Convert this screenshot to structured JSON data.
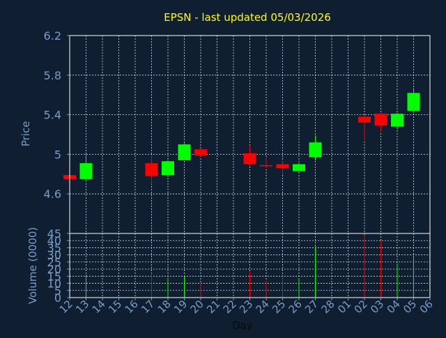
{
  "chart_data": {
    "type": "candlestick",
    "title": "EPSN - last updated 05/03/2026",
    "colors": {
      "background": "#0f1f31",
      "axis_text": "#7a9cc8",
      "title": "#ffff00",
      "grid": "#ffffff",
      "up": "#00ff00",
      "down": "#ff0000"
    },
    "xlabel": "Day",
    "x_ticks": [
      "12",
      "13",
      "14",
      "15",
      "16",
      "17",
      "18",
      "19",
      "20",
      "21",
      "22",
      "23",
      "24",
      "25",
      "26",
      "27",
      "28",
      "01",
      "02",
      "03",
      "04",
      "05",
      "06"
    ],
    "price_panel": {
      "ylabel": "Price",
      "ylim": [
        4.2,
        6.2
      ],
      "y_ticks": [
        "4.6",
        "5",
        "5.4",
        "5.8",
        "6.2"
      ],
      "y_tick_values": [
        4.6,
        5.0,
        5.4,
        5.8,
        6.2
      ]
    },
    "volume_panel": {
      "ylabel": "Volume (0000)",
      "ylim": [
        0,
        45
      ],
      "y_ticks": [
        "0",
        "5",
        "10",
        "15",
        "20",
        "25",
        "30",
        "35",
        "40",
        "45"
      ],
      "y_tick_values": [
        0,
        5,
        10,
        15,
        20,
        25,
        30,
        35,
        40,
        45
      ]
    },
    "candles": [
      {
        "day": "12",
        "open": 4.79,
        "high": 4.79,
        "low": 4.74,
        "close": 4.75,
        "volume": 0
      },
      {
        "day": "13",
        "open": 4.75,
        "high": 5.0,
        "low": 4.72,
        "close": 4.91,
        "volume": 16
      },
      {
        "day": "17",
        "open": 4.91,
        "high": 4.99,
        "low": 4.7,
        "close": 4.78,
        "volume": 17
      },
      {
        "day": "18",
        "open": 4.79,
        "high": 4.94,
        "low": 4.77,
        "close": 4.93,
        "volume": 14
      },
      {
        "day": "19",
        "open": 4.94,
        "high": 5.11,
        "low": 4.94,
        "close": 5.1,
        "volume": 15
      },
      {
        "day": "20",
        "open": 5.05,
        "high": 5.06,
        "low": 4.98,
        "close": 4.99,
        "volume": 10
      },
      {
        "day": "23",
        "open": 5.01,
        "high": 5.09,
        "low": 4.89,
        "close": 4.9,
        "volume": 18
      },
      {
        "day": "24",
        "open": 4.89,
        "high": 4.97,
        "low": 4.86,
        "close": 4.88,
        "volume": 12
      },
      {
        "day": "25",
        "open": 4.9,
        "high": 4.93,
        "low": 4.8,
        "close": 4.86,
        "volume": 15
      },
      {
        "day": "26",
        "open": 4.83,
        "high": 4.91,
        "low": 4.82,
        "close": 4.9,
        "volume": 13
      },
      {
        "day": "27",
        "open": 4.97,
        "high": 5.19,
        "low": 4.94,
        "close": 5.12,
        "volume": 36
      },
      {
        "day": "02",
        "open": 5.38,
        "high": 5.4,
        "low": 5.14,
        "close": 5.32,
        "volume": 44
      },
      {
        "day": "03",
        "open": 5.41,
        "high": 5.42,
        "low": 5.23,
        "close": 5.29,
        "volume": 40
      },
      {
        "day": "04",
        "open": 5.28,
        "high": 5.42,
        "low": 5.25,
        "close": 5.41,
        "volume": 24
      },
      {
        "day": "05",
        "open": 5.44,
        "high": 5.67,
        "low": 5.42,
        "close": 5.62,
        "volume": 29
      }
    ]
  }
}
